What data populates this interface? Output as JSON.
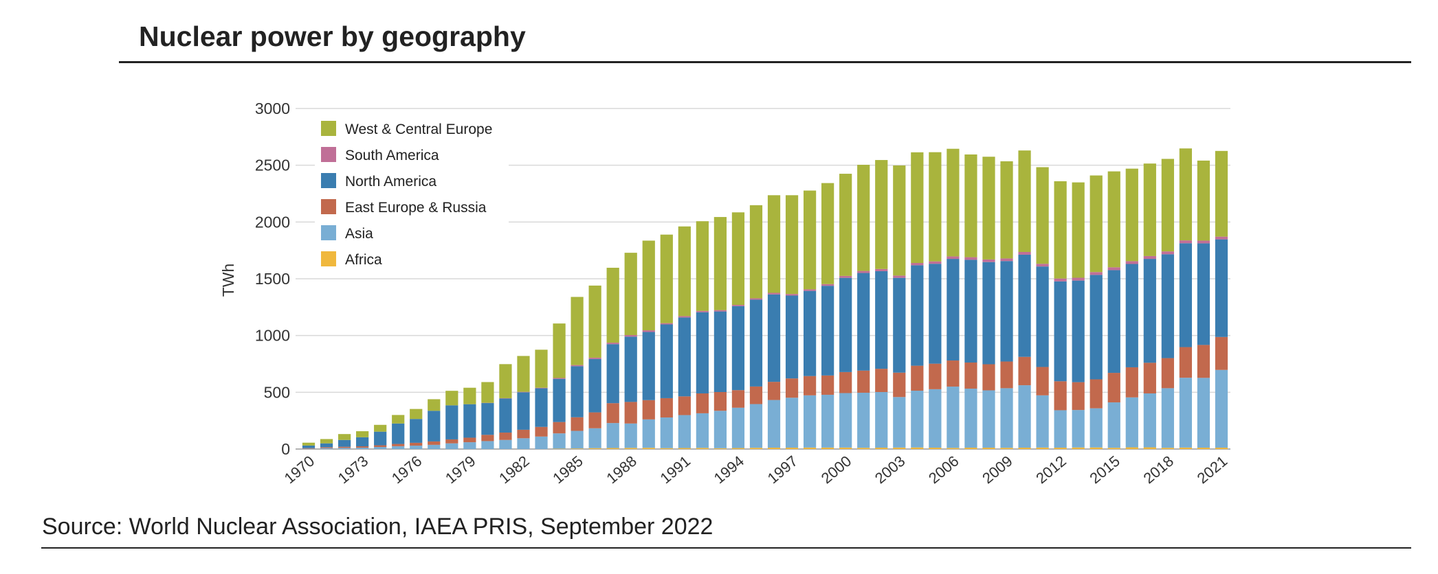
{
  "page": {
    "title": "Nuclear power by geography",
    "source": "Source: World Nuclear Association, IAEA PRIS, September 2022"
  },
  "chart_data": {
    "type": "bar",
    "stacked": true,
    "title": "",
    "xlabel": "",
    "ylabel": "TWh",
    "ylim": [
      0,
      3000
    ],
    "yticks": [
      0,
      500,
      1000,
      1500,
      2000,
      2500,
      3000
    ],
    "grid": true,
    "legend_position": "top-left",
    "x": [
      1970,
      1971,
      1972,
      1973,
      1974,
      1975,
      1976,
      1977,
      1978,
      1979,
      1980,
      1981,
      1982,
      1983,
      1984,
      1985,
      1986,
      1987,
      1988,
      1989,
      1990,
      1991,
      1992,
      1993,
      1994,
      1995,
      1996,
      1997,
      1998,
      1999,
      2000,
      2001,
      2002,
      2003,
      2004,
      2005,
      2006,
      2007,
      2008,
      2009,
      2010,
      2011,
      2012,
      2013,
      2014,
      2015,
      2016,
      2017,
      2018,
      2019,
      2020,
      2021
    ],
    "xtick_labels": [
      "1970",
      "1973",
      "1976",
      "1979",
      "1982",
      "1985",
      "1988",
      "1991",
      "1994",
      "1997",
      "2000",
      "2003",
      "2006",
      "2009",
      "2012",
      "2015",
      "2018",
      "2021"
    ],
    "series": [
      {
        "name": "Africa",
        "color": "#f0b83d",
        "values": [
          0,
          0,
          0,
          0,
          0,
          0,
          0,
          0,
          0,
          0,
          0,
          0,
          0,
          0,
          3,
          5,
          8,
          9,
          10,
          11,
          8,
          9,
          10,
          7,
          9,
          11,
          12,
          12,
          13,
          13,
          13,
          11,
          12,
          13,
          14,
          12,
          10,
          12,
          12,
          11,
          12,
          13,
          12,
          14,
          14,
          11,
          15,
          15,
          11,
          13,
          12,
          12
        ]
      },
      {
        "name": "Asia",
        "color": "#79aed4",
        "values": [
          3,
          8,
          10,
          12,
          18,
          25,
          30,
          37,
          50,
          60,
          70,
          80,
          95,
          110,
          135,
          155,
          175,
          220,
          215,
          250,
          270,
          290,
          305,
          330,
          355,
          385,
          420,
          440,
          460,
          465,
          480,
          485,
          490,
          445,
          500,
          515,
          540,
          520,
          505,
          525,
          550,
          460,
          330,
          330,
          345,
          400,
          440,
          475,
          525,
          615,
          615,
          685
        ]
      },
      {
        "name": "East Europe & Russia",
        "color": "#c2694d",
        "values": [
          5,
          8,
          10,
          12,
          15,
          20,
          25,
          30,
          35,
          40,
          55,
          65,
          75,
          85,
          100,
          120,
          140,
          175,
          190,
          170,
          170,
          165,
          175,
          165,
          155,
          155,
          160,
          170,
          170,
          170,
          185,
          195,
          205,
          215,
          220,
          225,
          230,
          230,
          230,
          235,
          250,
          250,
          255,
          245,
          255,
          260,
          265,
          270,
          265,
          270,
          290,
          290
        ]
      },
      {
        "name": "North America",
        "color": "#3a7db0",
        "values": [
          23,
          34,
          60,
          80,
          120,
          180,
          210,
          270,
          300,
          295,
          280,
          300,
          330,
          340,
          380,
          450,
          470,
          520,
          575,
          600,
          650,
          695,
          715,
          710,
          740,
          765,
          770,
          730,
          750,
          790,
          830,
          860,
          860,
          835,
          885,
          880,
          895,
          905,
          900,
          885,
          900,
          885,
          880,
          895,
          920,
          905,
          910,
          915,
          915,
          915,
          895,
          860
        ]
      },
      {
        "name": "South America",
        "color": "#c06f97",
        "values": [
          0,
          0,
          0,
          0,
          0,
          0,
          0,
          0,
          0,
          0,
          2,
          3,
          4,
          5,
          8,
          10,
          12,
          13,
          14,
          15,
          11,
          12,
          12,
          12,
          11,
          12,
          14,
          14,
          14,
          15,
          17,
          18,
          19,
          20,
          20,
          21,
          22,
          23,
          23,
          23,
          24,
          24,
          25,
          25,
          25,
          25,
          25,
          25,
          25,
          25,
          24,
          24
        ]
      },
      {
        "name": "West & Central Europe",
        "color": "#a9b43d",
        "values": [
          25,
          38,
          52,
          53,
          60,
          75,
          88,
          102,
          128,
          145,
          183,
          300,
          316,
          335,
          480,
          600,
          635,
          660,
          725,
          790,
          780,
          790,
          790,
          820,
          815,
          820,
          860,
          870,
          870,
          890,
          900,
          935,
          960,
          970,
          975,
          962,
          948,
          905,
          905,
          856,
          894,
          851,
          857,
          840,
          851,
          845,
          815,
          815,
          815,
          810,
          705,
          755
        ]
      }
    ]
  },
  "legend_order": [
    "West & Central Europe",
    "South America",
    "North America",
    "East Europe & Russia",
    "Asia",
    "Africa"
  ]
}
